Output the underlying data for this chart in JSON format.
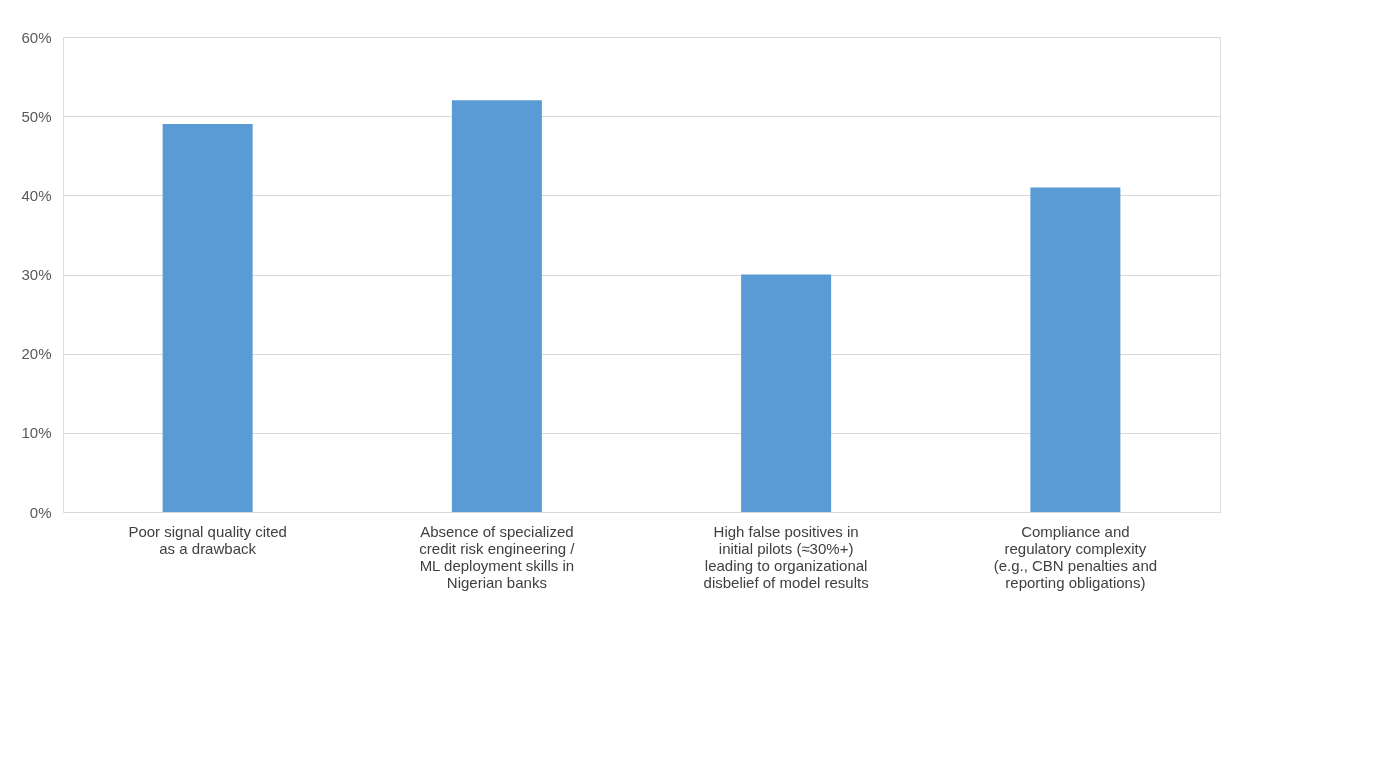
{
  "chart_data": {
    "type": "bar",
    "categories": [
      "Poor signal quality cited\nas a drawback",
      "Absence of specialized\ncredit risk engineering /\nML deployment skills in\nNigerian banks",
      "High false positives in\ninitial pilots (≈30%+)\nleading to organizational\ndisbelief of model results",
      "Compliance and\nregulatory complexity\n(e.g., CBN penalties and\nreporting obligations)"
    ],
    "values": [
      49,
      52,
      30,
      41
    ],
    "color": "#5b9bd5",
    "ylim": [
      0,
      60
    ],
    "yticks": [
      {
        "value": 0,
        "label": "0%"
      },
      {
        "value": 10,
        "label": "10%"
      },
      {
        "value": 20,
        "label": "20%"
      },
      {
        "value": 30,
        "label": "30%"
      },
      {
        "value": 40,
        "label": "40%"
      },
      {
        "value": 50,
        "label": "50%"
      },
      {
        "value": 60,
        "label": "60%"
      }
    ],
    "grid": "y"
  }
}
